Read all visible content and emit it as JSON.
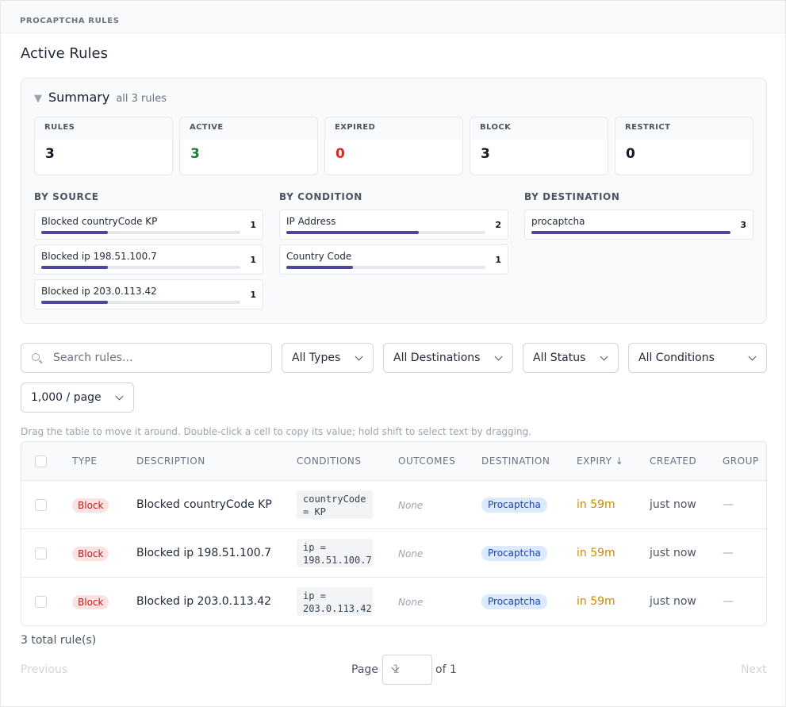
{
  "app_title": "PROCAPTCHA RULES",
  "page_title": "Active Rules",
  "summary": {
    "title": "Summary",
    "subtitle": "all 3 rules",
    "stats": [
      {
        "label": "RULES",
        "value": "3",
        "color": "#111827"
      },
      {
        "label": "ACTIVE",
        "value": "3",
        "color": "#15803d"
      },
      {
        "label": "EXPIRED",
        "value": "0",
        "color": "#dc2626"
      },
      {
        "label": "BLOCK",
        "value": "3",
        "color": "#111827"
      },
      {
        "label": "RESTRICT",
        "value": "0",
        "color": "#111827"
      }
    ],
    "by_source": {
      "title": "BY SOURCE",
      "items": [
        {
          "label": "Blocked countryCode KP",
          "count": "1",
          "fraction": 0.333
        },
        {
          "label": "Blocked ip 198.51.100.7",
          "count": "1",
          "fraction": 0.333
        },
        {
          "label": "Blocked ip 203.0.113.42",
          "count": "1",
          "fraction": 0.333
        }
      ]
    },
    "by_condition": {
      "title": "BY CONDITION",
      "items": [
        {
          "label": "IP Address",
          "count": "2",
          "fraction": 0.667
        },
        {
          "label": "Country Code",
          "count": "1",
          "fraction": 0.333
        }
      ]
    },
    "by_destination": {
      "title": "BY DESTINATION",
      "items": [
        {
          "label": "procaptcha",
          "count": "3",
          "fraction": 1.0
        }
      ]
    }
  },
  "filters": {
    "search_placeholder": "Search rules...",
    "types": "All Types",
    "destinations": "All Destinations",
    "status": "All Status",
    "conditions": "All Conditions",
    "page_size": "1,000 / page"
  },
  "hint": "Drag the table to move it around. Double-click a cell to copy its value; hold shift to select text by dragging.",
  "table": {
    "headers": {
      "type": "TYPE",
      "description": "DESCRIPTION",
      "conditions": "CONDITIONS",
      "outcomes": "OUTCOMES",
      "destination": "DESTINATION",
      "expiry": "EXPIRY ↓",
      "created": "CREATED",
      "group": "GROUP"
    },
    "rows": [
      {
        "type": "Block",
        "description": "Blocked countryCode KP",
        "condition_line1": "countryCode",
        "condition_line2": "= KP",
        "outcomes": "None",
        "destination": "Procaptcha",
        "expiry": "in 59m",
        "created": "just now",
        "group": "—"
      },
      {
        "type": "Block",
        "description": "Blocked ip 198.51.100.7",
        "condition_line1": "ip =",
        "condition_line2": "198.51.100.7",
        "outcomes": "None",
        "destination": "Procaptcha",
        "expiry": "in 59m",
        "created": "just now",
        "group": "—"
      },
      {
        "type": "Block",
        "description": "Blocked ip 203.0.113.42",
        "condition_line1": "ip =",
        "condition_line2": "203.0.113.42",
        "outcomes": "None",
        "destination": "Procaptcha",
        "expiry": "in 59m",
        "created": "just now",
        "group": "—"
      }
    ]
  },
  "footer": {
    "total": "3 total rule(s)",
    "previous": "Previous",
    "next": "Next",
    "page_label": "Page",
    "page_value": "1",
    "page_of": "of 1"
  }
}
